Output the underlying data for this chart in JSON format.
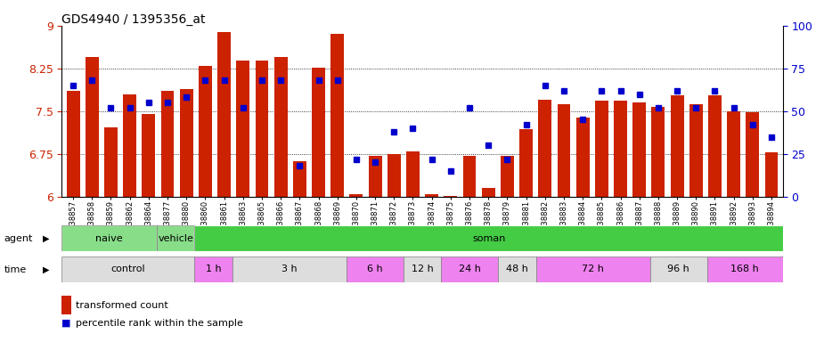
{
  "title": "GDS4940 / 1395356_at",
  "samples": [
    "GSM338857",
    "GSM338858",
    "GSM338859",
    "GSM338862",
    "GSM338864",
    "GSM338877",
    "GSM338880",
    "GSM338860",
    "GSM338861",
    "GSM338863",
    "GSM338865",
    "GSM338866",
    "GSM338867",
    "GSM338868",
    "GSM338869",
    "GSM338870",
    "GSM338871",
    "GSM338872",
    "GSM338873",
    "GSM338874",
    "GSM338875",
    "GSM338876",
    "GSM338878",
    "GSM338879",
    "GSM338881",
    "GSM338882",
    "GSM338883",
    "GSM338884",
    "GSM338885",
    "GSM338886",
    "GSM338887",
    "GSM338888",
    "GSM338889",
    "GSM338890",
    "GSM338891",
    "GSM338892",
    "GSM338893",
    "GSM338894"
  ],
  "bar_values": [
    7.85,
    8.45,
    7.22,
    7.8,
    7.45,
    7.85,
    7.88,
    8.3,
    8.88,
    8.38,
    8.38,
    8.45,
    6.62,
    8.27,
    8.85,
    6.05,
    6.72,
    6.75,
    6.8,
    6.05,
    6.02,
    6.72,
    6.15,
    6.72,
    7.18,
    7.7,
    7.62,
    7.38,
    7.68,
    7.68,
    7.65,
    7.58,
    7.78,
    7.62,
    7.78,
    7.5,
    7.48,
    6.78
  ],
  "percentile_values": [
    65,
    68,
    52,
    52,
    55,
    55,
    58,
    68,
    68,
    52,
    68,
    68,
    18,
    68,
    68,
    22,
    20,
    38,
    40,
    22,
    15,
    52,
    30,
    22,
    42,
    65,
    62,
    45,
    62,
    62,
    60,
    52,
    62,
    52,
    62,
    52,
    42,
    35
  ],
  "ymin": 6.0,
  "ymax": 9.0,
  "yticks": [
    6,
    6.75,
    7.5,
    8.25,
    9
  ],
  "ytick_labels": [
    "6",
    "6.75",
    "7.5",
    "8.25",
    "9"
  ],
  "right_yticks": [
    0,
    25,
    50,
    75,
    100
  ],
  "right_ytick_labels": [
    "0",
    "25",
    "50",
    "75",
    "100"
  ],
  "agent_groups": [
    {
      "label": "naive",
      "start": 0,
      "end": 5,
      "color": "#88DD88"
    },
    {
      "label": "vehicle",
      "start": 5,
      "end": 7,
      "color": "#88DD88"
    },
    {
      "label": "soman",
      "start": 7,
      "end": 38,
      "color": "#44CC44"
    }
  ],
  "time_groups": [
    {
      "label": "control",
      "start": 0,
      "end": 7,
      "color": "#DDDDDD"
    },
    {
      "label": "1 h",
      "start": 7,
      "end": 9,
      "color": "#EE82EE"
    },
    {
      "label": "3 h",
      "start": 9,
      "end": 15,
      "color": "#DDDDDD"
    },
    {
      "label": "6 h",
      "start": 15,
      "end": 18,
      "color": "#EE82EE"
    },
    {
      "label": "12 h",
      "start": 18,
      "end": 20,
      "color": "#DDDDDD"
    },
    {
      "label": "24 h",
      "start": 20,
      "end": 23,
      "color": "#EE82EE"
    },
    {
      "label": "48 h",
      "start": 23,
      "end": 25,
      "color": "#DDDDDD"
    },
    {
      "label": "72 h",
      "start": 25,
      "end": 31,
      "color": "#EE82EE"
    },
    {
      "label": "96 h",
      "start": 31,
      "end": 34,
      "color": "#DDDDDD"
    },
    {
      "label": "168 h",
      "start": 34,
      "end": 38,
      "color": "#EE82EE"
    }
  ],
  "bar_color": "#CC2200",
  "marker_color": "#0000CC",
  "label_color_left": "#CC2200",
  "label_color_right": "#0000CC"
}
